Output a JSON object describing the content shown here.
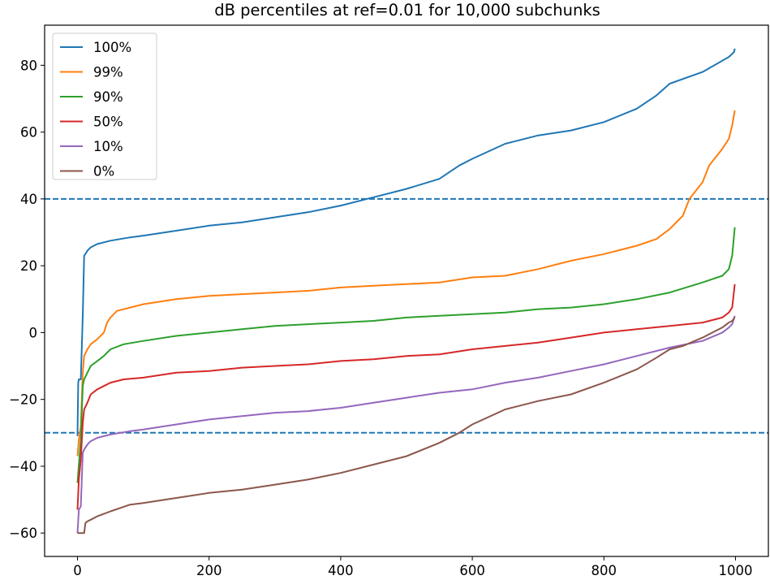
{
  "chart_data": {
    "type": "line",
    "title": "dB percentiles at ref=0.01 for 10,000 subchunks",
    "xlabel": "",
    "ylabel": "",
    "xlim": [
      -50,
      1050
    ],
    "ylim": [
      -67,
      92
    ],
    "xticks": [
      0,
      200,
      400,
      600,
      800,
      1000
    ],
    "yticks": [
      -60,
      -40,
      -20,
      0,
      20,
      40,
      60,
      80
    ],
    "xtick_labels": [
      "0",
      "200",
      "400",
      "600",
      "800",
      "1000"
    ],
    "ytick_labels": [
      "−60",
      "−40",
      "−20",
      "0",
      "20",
      "40",
      "60",
      "80"
    ],
    "grid": false,
    "legend_position": "top-left",
    "hlines": [
      {
        "y": 40,
        "style": "dashed",
        "color": "#1f77b4"
      },
      {
        "y": -30,
        "style": "dashed",
        "color": "#1f77b4"
      }
    ],
    "series": [
      {
        "name": "100%",
        "color": "#1f77b4",
        "x": [
          0,
          1,
          2,
          3,
          5,
          8,
          10,
          12,
          15,
          20,
          30,
          50,
          80,
          100,
          150,
          200,
          250,
          300,
          350,
          400,
          450,
          500,
          550,
          580,
          600,
          650,
          700,
          750,
          800,
          850,
          880,
          900,
          950,
          990,
          998,
          999
        ],
        "y": [
          -31,
          -15,
          -14,
          -14,
          -14,
          5,
          23,
          23.5,
          24.5,
          25.5,
          26.5,
          27.5,
          28.5,
          29,
          30.5,
          32,
          33,
          34.5,
          36,
          38,
          40.5,
          43,
          46,
          50,
          52,
          56.5,
          59,
          60.5,
          63,
          67,
          71,
          74.5,
          78,
          82.5,
          84,
          85
        ]
      },
      {
        "name": "99%",
        "color": "#ff7f0e",
        "x": [
          0,
          2,
          5,
          8,
          10,
          15,
          20,
          30,
          40,
          45,
          50,
          60,
          80,
          100,
          150,
          200,
          250,
          300,
          350,
          400,
          450,
          500,
          550,
          600,
          650,
          700,
          750,
          800,
          850,
          880,
          900,
          920,
          930,
          950,
          960,
          980,
          990,
          995,
          999
        ],
        "y": [
          -37,
          -32,
          -28,
          -12,
          -7,
          -5,
          -3.5,
          -2,
          0,
          3,
          4.5,
          6.5,
          7.5,
          8.5,
          10,
          11,
          11.5,
          12,
          12.5,
          13.5,
          14,
          14.5,
          15,
          16.5,
          17,
          19,
          21.5,
          23.5,
          26,
          28,
          31,
          35,
          40,
          45,
          50,
          55,
          58,
          62,
          66.5
        ]
      },
      {
        "name": "90%",
        "color": "#2ca02c",
        "x": [
          0,
          3,
          5,
          8,
          10,
          15,
          20,
          30,
          40,
          50,
          70,
          100,
          150,
          200,
          250,
          300,
          350,
          400,
          450,
          500,
          550,
          600,
          650,
          700,
          750,
          800,
          850,
          900,
          950,
          980,
          990,
          995,
          999
        ],
        "y": [
          -45,
          -37,
          -32,
          -16,
          -14,
          -12,
          -10,
          -8.5,
          -7,
          -5,
          -3.5,
          -2.5,
          -1,
          0,
          1,
          2,
          2.5,
          3,
          3.5,
          4.5,
          5,
          5.5,
          6,
          7,
          7.5,
          8.5,
          10,
          12,
          15,
          17,
          19,
          23,
          31.5
        ]
      },
      {
        "name": "50%",
        "color": "#d62728",
        "x": [
          0,
          2,
          5,
          8,
          10,
          15,
          20,
          30,
          40,
          50,
          70,
          100,
          150,
          200,
          250,
          300,
          350,
          400,
          450,
          500,
          550,
          600,
          650,
          700,
          750,
          800,
          850,
          900,
          950,
          980,
          990,
          995,
          999
        ],
        "y": [
          -53,
          -44,
          -38,
          -27,
          -23,
          -21,
          -18.5,
          -17,
          -16,
          -15,
          -14,
          -13.5,
          -12,
          -11.5,
          -10.5,
          -10,
          -9.5,
          -8.5,
          -8,
          -7,
          -6.5,
          -5,
          -4,
          -3,
          -1.5,
          0,
          1,
          2,
          3,
          4.5,
          6,
          7.5,
          14.5
        ]
      },
      {
        "name": "10%",
        "color": "#9467bd",
        "x": [
          0,
          2,
          5,
          8,
          10,
          15,
          20,
          30,
          50,
          80,
          100,
          150,
          200,
          250,
          300,
          350,
          400,
          450,
          500,
          550,
          600,
          650,
          700,
          750,
          800,
          850,
          900,
          950,
          980,
          990,
          995,
          999
        ],
        "y": [
          -60,
          -53,
          -52,
          -36,
          -35,
          -33.5,
          -32.5,
          -31.5,
          -30.5,
          -29.5,
          -29,
          -27.5,
          -26,
          -25,
          -24,
          -23.5,
          -22.5,
          -21,
          -19.5,
          -18,
          -17,
          -15,
          -13.5,
          -11.5,
          -9.5,
          -7,
          -4.5,
          -2.5,
          0,
          1.5,
          2.5,
          5
        ]
      },
      {
        "name": "0%",
        "color": "#8c564b",
        "x": [
          0,
          5,
          10,
          12,
          15,
          20,
          30,
          50,
          80,
          100,
          150,
          200,
          250,
          300,
          350,
          400,
          450,
          500,
          550,
          580,
          600,
          650,
          700,
          750,
          800,
          850,
          880,
          900,
          920,
          950,
          980,
          990,
          995,
          999
        ],
        "y": [
          -60,
          -60,
          -60,
          -57,
          -56.5,
          -56,
          -55,
          -53.5,
          -51.5,
          -51,
          -49.5,
          -48,
          -47,
          -45.5,
          -44,
          -42,
          -39.5,
          -37,
          -33,
          -30,
          -27.5,
          -23,
          -20.5,
          -18.5,
          -15,
          -11,
          -7.5,
          -5,
          -4,
          -1.5,
          1.5,
          3,
          3.5,
          4.5
        ]
      }
    ]
  }
}
